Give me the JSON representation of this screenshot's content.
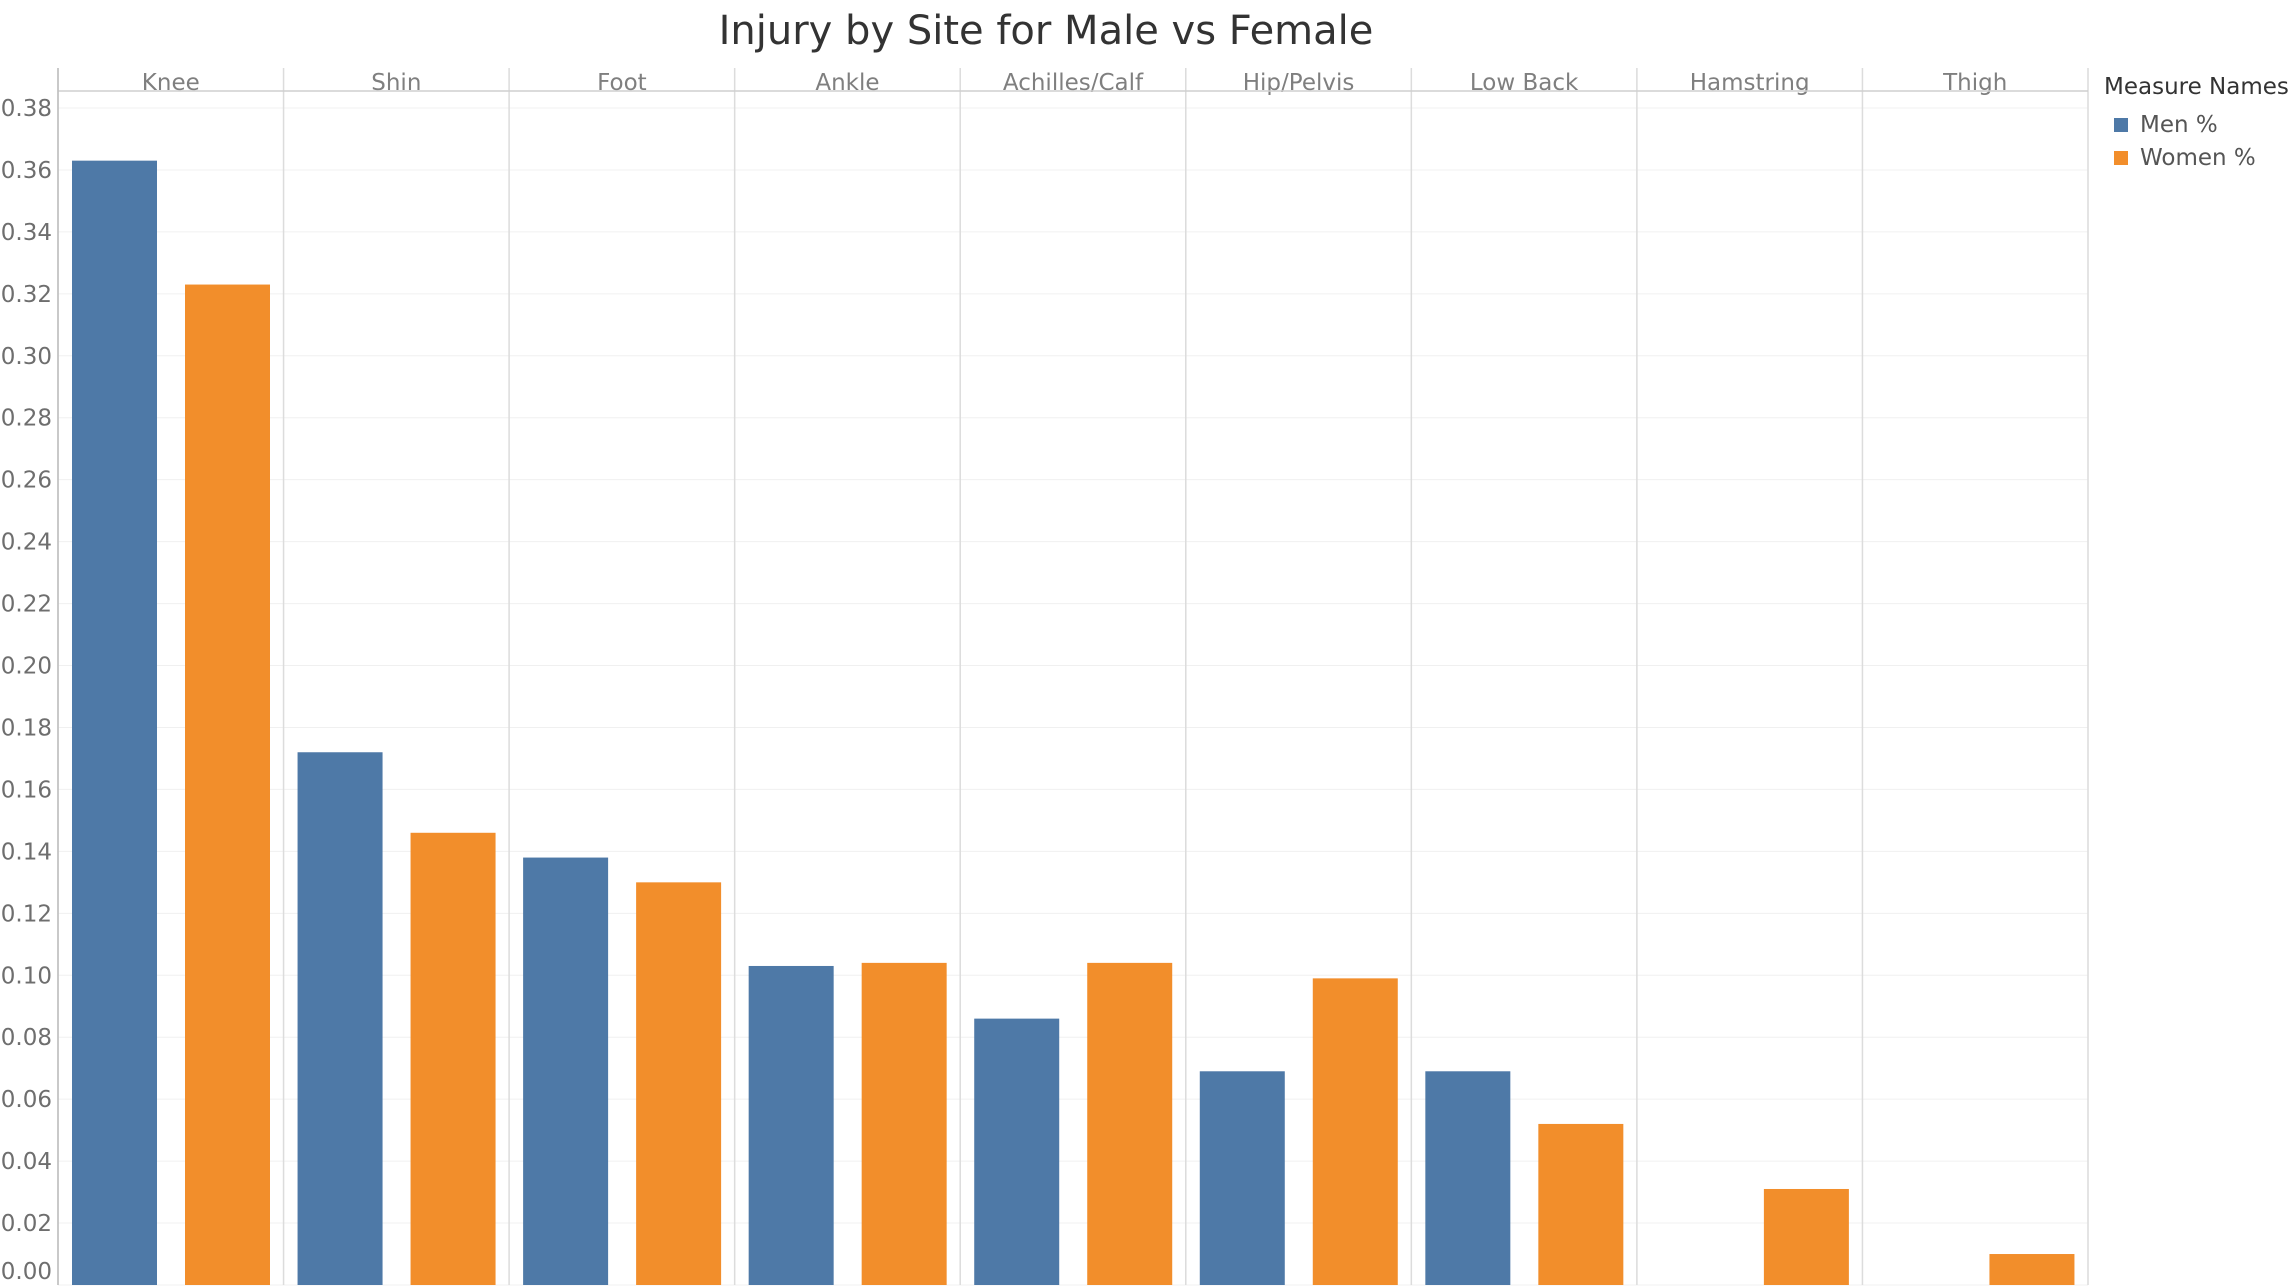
{
  "chart_data": {
    "type": "bar",
    "title": "Injury by Site for Male vs Female",
    "xlabel": "",
    "ylabel": "",
    "categories": [
      "Knee",
      "Shin",
      "Foot",
      "Ankle",
      "Achilles/Calf",
      "Hip/Pelvis",
      "Low Back",
      "Hamstring",
      "Thigh"
    ],
    "series": [
      {
        "name": "Men %",
        "color": "#4e79a7",
        "values": [
          0.363,
          0.172,
          0.138,
          0.103,
          0.086,
          0.069,
          0.069,
          0,
          0
        ]
      },
      {
        "name": "Women %",
        "color": "#f28e2b",
        "values": [
          0.323,
          0.146,
          0.13,
          0.104,
          0.104,
          0.099,
          0.052,
          0.031,
          0.01
        ]
      }
    ],
    "ylim": [
      0,
      0.38
    ],
    "yticks": [
      "0.00",
      "0.02",
      "0.04",
      "0.06",
      "0.08",
      "0.10",
      "0.12",
      "0.14",
      "0.16",
      "0.18",
      "0.20",
      "0.22",
      "0.24",
      "0.26",
      "0.28",
      "0.30",
      "0.32",
      "0.34",
      "0.36",
      "0.38"
    ],
    "grid": true,
    "legend": {
      "title": "Measure Names",
      "position": "right"
    }
  }
}
